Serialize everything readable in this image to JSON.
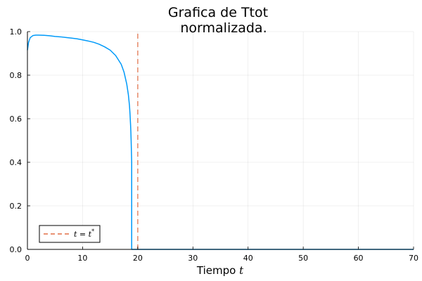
{
  "chart_data": {
    "type": "line",
    "title": [
      "Grafica de Ttot",
      "normalizada."
    ],
    "xlabel": {
      "text": "Tiempo ",
      "var": "t"
    },
    "ylabel": "",
    "xlim": [
      0,
      70
    ],
    "ylim": [
      0,
      1
    ],
    "xticks": [
      0,
      10,
      20,
      30,
      40,
      50,
      60,
      70
    ],
    "yticks": [
      "0.0",
      "0.2",
      "0.4",
      "0.6",
      "0.8",
      "1.0"
    ],
    "grid": true,
    "legend_position": "bottom-left",
    "series": [
      {
        "name": "",
        "color": "#009af9",
        "style": "solid",
        "x": [
          0,
          0.2,
          0.5,
          1,
          1.5,
          2,
          3,
          4,
          5,
          6,
          7,
          8,
          9,
          10,
          11,
          12,
          13,
          14,
          15,
          16,
          17,
          17.5,
          18,
          18.3,
          18.5,
          18.6,
          18.7,
          18.75,
          18.8,
          18.85,
          18.9,
          18.9,
          19,
          25,
          30,
          40,
          50,
          60,
          70
        ],
        "y": [
          0.915,
          0.95,
          0.972,
          0.982,
          0.984,
          0.984,
          0.983,
          0.981,
          0.978,
          0.976,
          0.973,
          0.97,
          0.967,
          0.962,
          0.957,
          0.951,
          0.942,
          0.93,
          0.915,
          0.89,
          0.85,
          0.815,
          0.76,
          0.71,
          0.66,
          0.62,
          0.57,
          0.54,
          0.5,
          0.45,
          0.4,
          0.0,
          0.0,
          0.0,
          0.0,
          0.0,
          0.0,
          0.0,
          0.0
        ]
      },
      {
        "name": "t = t*",
        "label_var": "t = t",
        "label_sup": "*",
        "color": "#e26f46",
        "style": "dashed",
        "x": [
          20,
          20
        ],
        "y": [
          0,
          1
        ]
      }
    ]
  }
}
